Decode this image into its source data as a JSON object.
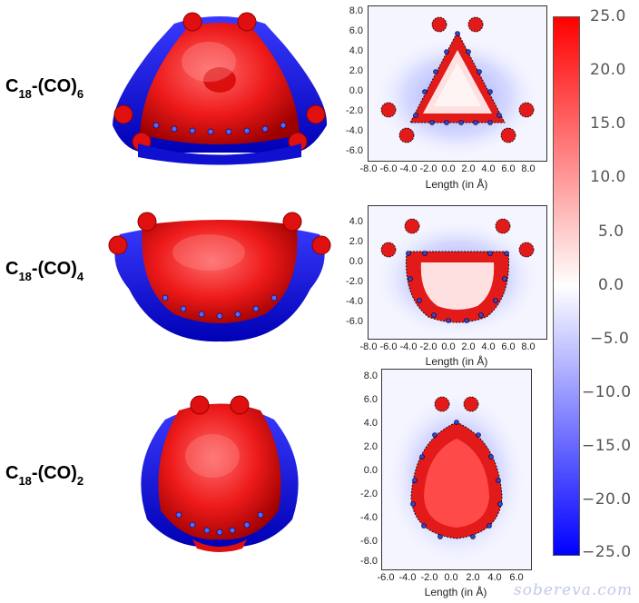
{
  "rows": [
    {
      "label": {
        "base": "C",
        "base_sub": "18",
        "dash": "-(CO)",
        "suffix_sub": "6"
      },
      "map": {
        "yticks": [
          "8.0",
          "6.0",
          "4.0",
          "2.0",
          "0.0",
          "-2.0",
          "-4.0",
          "-6.0"
        ],
        "xticks": [
          "-8.0",
          "-6.0",
          "-4.0",
          "-2.0",
          "0.0",
          "2.0",
          "4.0",
          "6.0",
          "8.0"
        ],
        "xlabel": "Length (in Å)"
      }
    },
    {
      "label": {
        "base": "C",
        "base_sub": "18",
        "dash": "-(CO)",
        "suffix_sub": "4"
      },
      "map": {
        "yticks": [
          "4.0",
          "2.0",
          "0.0",
          "-2.0",
          "-4.0",
          "-6.0"
        ],
        "xticks": [
          "-8.0",
          "-6.0",
          "-4.0",
          "-2.0",
          "0.0",
          "2.0",
          "4.0",
          "6.0",
          "8.0"
        ],
        "xlabel": "Length (in Å)"
      }
    },
    {
      "label": {
        "base": "C",
        "base_sub": "18",
        "dash": "-(CO)",
        "suffix_sub": "2"
      },
      "map": {
        "yticks": [
          "8.0",
          "6.0",
          "4.0",
          "2.0",
          "0.0",
          "-2.0",
          "-4.0",
          "-6.0",
          "-8.0"
        ],
        "xticks": [
          "-6.0",
          "-4.0",
          "-2.0",
          "0.0",
          "2.0",
          "4.0",
          "6.0"
        ],
        "xlabel": "Length (in Å)"
      }
    }
  ],
  "colorbar": {
    "ticks": [
      "25.0",
      "20.0",
      "15.0",
      "10.0",
      "5.0",
      "0.0",
      "−5.0",
      "−10.0",
      "−15.0",
      "−20.0",
      "−25.0"
    ],
    "colors": {
      "top": "#ff0000",
      "mid": "#ffffff",
      "bottom": "#0000ff"
    }
  },
  "watermark": "sobereva.com"
}
